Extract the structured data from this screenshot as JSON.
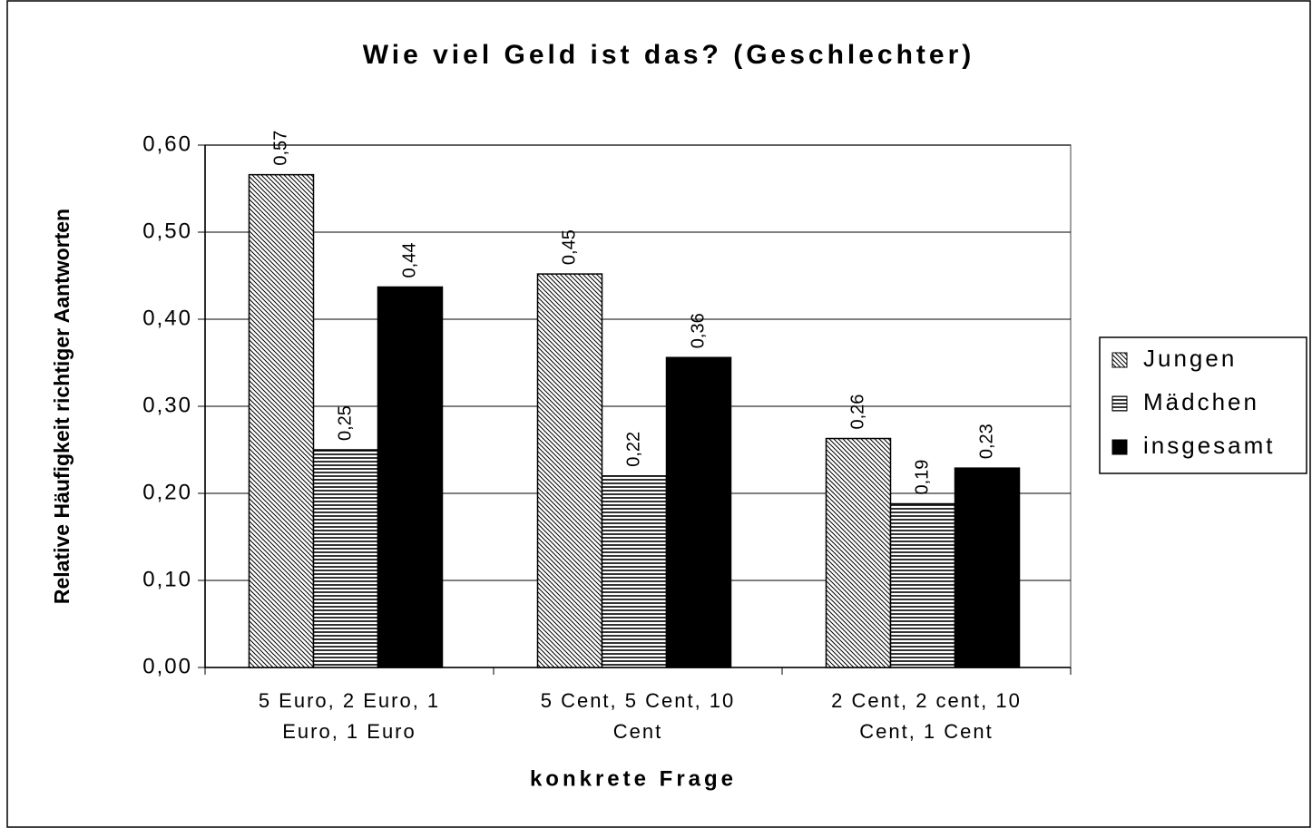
{
  "chart_data": {
    "type": "bar",
    "title": "Wie viel Geld ist das? (Geschlechter)",
    "x_label": "konkrete Frage",
    "y_label": "Relative Häufigkeit richtiger Aantworten",
    "categories": [
      "5 Euro, 2 Euro, 1 Euro, 1 Euro",
      "5 Cent, 5 Cent, 10 Cent",
      "2 Cent, 2 cent, 10 Cent, 1 Cent"
    ],
    "series": [
      {
        "name": "Jungen",
        "pattern": "diagonal",
        "color": "#000000",
        "values": [
          0.566,
          0.452,
          0.263
        ],
        "value_labels": [
          "0,57",
          "0,45",
          "0,26"
        ]
      },
      {
        "name": "Mädchen",
        "pattern": "horizontal",
        "color": "#000000",
        "values": [
          0.25,
          0.22,
          0.188
        ],
        "value_labels": [
          "0,25",
          "0,22",
          "0,19"
        ]
      },
      {
        "name": "insgesamt",
        "pattern": "solid",
        "color": "#000000",
        "values": [
          0.437,
          0.356,
          0.229
        ],
        "value_labels": [
          "0,44",
          "0,36",
          "0,23"
        ]
      }
    ],
    "ylim": [
      0,
      0.6
    ],
    "yticks": [
      {
        "value": 0,
        "label": "0,00"
      },
      {
        "value": 0.1,
        "label": "0,10"
      },
      {
        "value": 0.2,
        "label": "0,20"
      },
      {
        "value": 0.3,
        "label": "0,30"
      },
      {
        "value": 0.4,
        "label": "0,40"
      },
      {
        "value": 0.5,
        "label": "0,50"
      },
      {
        "value": 0.6,
        "label": "0,60"
      }
    ],
    "grid": true,
    "legend": "right"
  }
}
